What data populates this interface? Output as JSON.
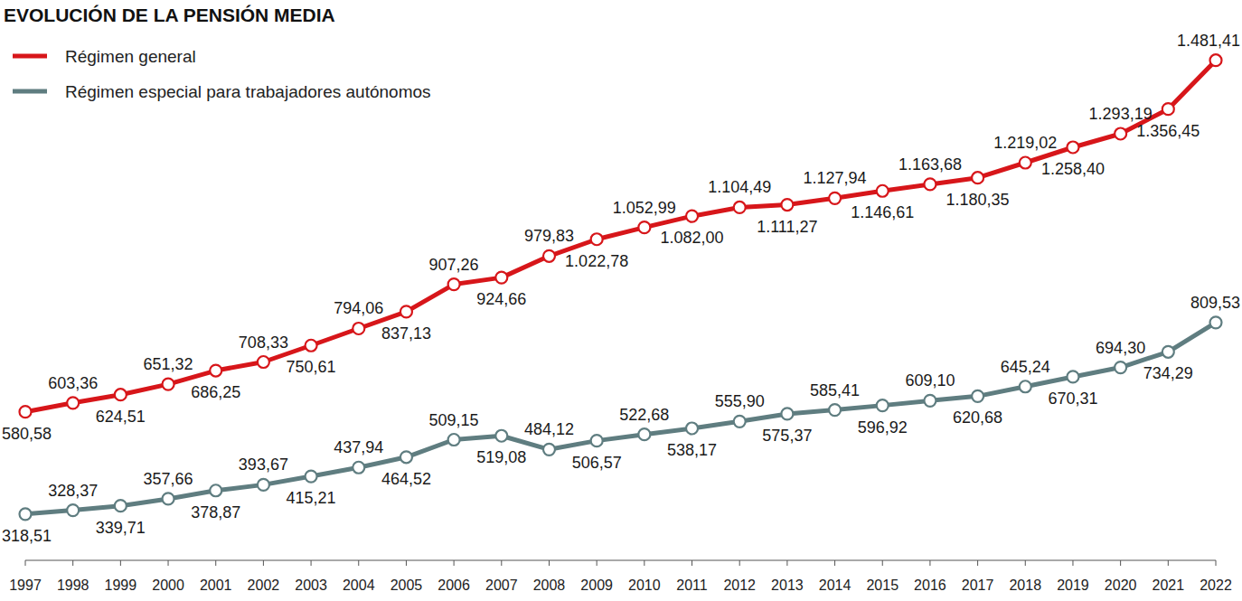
{
  "chart_data": {
    "type": "line",
    "title": "EVOLUCIÓN DE LA PENSIÓN MEDIA",
    "x": [
      1997,
      1998,
      1999,
      2000,
      2001,
      2002,
      2003,
      2004,
      2005,
      2006,
      2007,
      2008,
      2009,
      2010,
      2011,
      2012,
      2013,
      2014,
      2015,
      2016,
      2017,
      2018,
      2019,
      2020,
      2021,
      2022
    ],
    "xlim": [
      1997,
      2022
    ],
    "xticks": [
      1997,
      1998,
      1999,
      2000,
      2001,
      2002,
      2003,
      2004,
      2005,
      2006,
      2007,
      2008,
      2009,
      2010,
      2011,
      2012,
      2013,
      2014,
      2015,
      2016,
      2017,
      2018,
      2019,
      2020,
      2021,
      2022
    ],
    "ylim": [
      200,
      1600
    ],
    "grid": false,
    "legend": "top-left",
    "data_labels": true,
    "tick_labels": "x",
    "marker": "circle",
    "series": [
      {
        "name": "Régimen general",
        "color": "#d7161a",
        "values": [
          580.58,
          603.36,
          624.51,
          651.32,
          686.25,
          708.33,
          750.61,
          794.06,
          837.13,
          907.26,
          924.66,
          979.83,
          1022.78,
          1052.99,
          1082.0,
          1104.49,
          1111.27,
          1127.94,
          1146.61,
          1163.68,
          1180.35,
          1219.02,
          1258.4,
          1293.19,
          1356.45,
          1481.41
        ],
        "value_labels": [
          "580,58",
          "603,36",
          "624,51",
          "651,32",
          "686,25",
          "708,33",
          "750,61",
          "794,06",
          "837,13",
          "907,26",
          "924,66",
          "979,83",
          "1.022,78",
          "1.052,99",
          "1.082,00",
          "1.104,49",
          "1.111,27",
          "1.127,94",
          "1.146,61",
          "1.163,68",
          "1.180,35",
          "1.219,02",
          "1.258,40",
          "1.293,19",
          "1.356,45",
          "1.481,41"
        ]
      },
      {
        "name": "Régimen especial para trabajadores autónomos",
        "color": "#5f7d80",
        "values": [
          318.51,
          328.37,
          339.71,
          357.66,
          378.87,
          393.67,
          415.21,
          437.94,
          464.52,
          509.15,
          519.08,
          484.12,
          506.57,
          522.68,
          538.17,
          555.9,
          575.37,
          585.41,
          596.92,
          609.1,
          620.68,
          645.24,
          670.31,
          694.3,
          734.29,
          809.53
        ],
        "value_labels": [
          "318,51",
          "328,37",
          "339,71",
          "357,66",
          "378,87",
          "393,67",
          "415,21",
          "437,94",
          "464,52",
          "509,15",
          "519,08",
          "484,12",
          "506,57",
          "522,68",
          "538,17",
          "555,90",
          "575,37",
          "585,41",
          "596,92",
          "609,10",
          "620,68",
          "645,24",
          "670,31",
          "694,30",
          "734,29",
          "809,53"
        ]
      }
    ]
  }
}
